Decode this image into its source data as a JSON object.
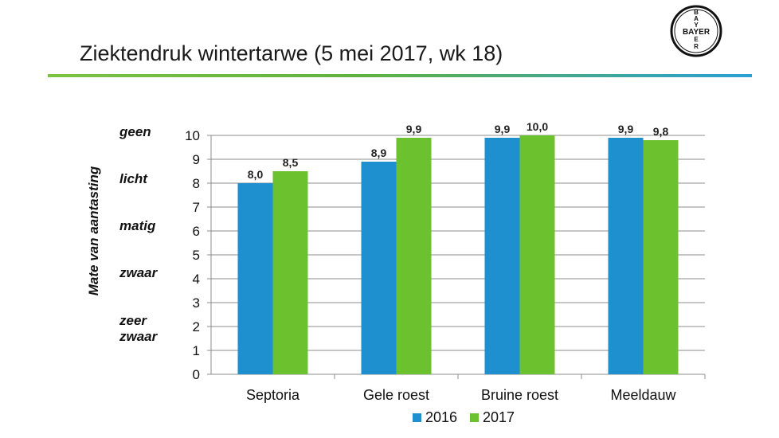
{
  "header": {
    "title": "Ziektendruk wintertarwe (5 mei 2017, wk 18)",
    "logo_text": "BAYER"
  },
  "severity_labels": [
    "geen",
    "licht",
    "matig",
    "zwaar",
    "zeer\nzwaar"
  ],
  "colors": {
    "s2016": "#1e90cf",
    "s2017": "#6cc12e",
    "divider_start": "#7dc242",
    "divider_end": "#2a9fd6"
  },
  "chart_data": {
    "type": "bar",
    "title": "",
    "xlabel": "",
    "ylabel": "Mate van aantasting",
    "ylim": [
      0,
      10
    ],
    "yticks": [
      0,
      1,
      2,
      3,
      4,
      5,
      6,
      7,
      8,
      9,
      10
    ],
    "grid": true,
    "legend": "bottom",
    "categories": [
      "Septoria",
      "Gele roest",
      "Bruine roest",
      "Meeldauw"
    ],
    "series": [
      {
        "name": "2016",
        "values": [
          8.0,
          8.9,
          9.9,
          9.9
        ],
        "labels": [
          "8,0",
          "8,9",
          "9,9",
          "9,9"
        ]
      },
      {
        "name": "2017",
        "values": [
          8.5,
          9.9,
          10.0,
          9.8
        ],
        "labels": [
          "8,5",
          "9,9",
          "10,0",
          "9,8"
        ]
      }
    ]
  }
}
